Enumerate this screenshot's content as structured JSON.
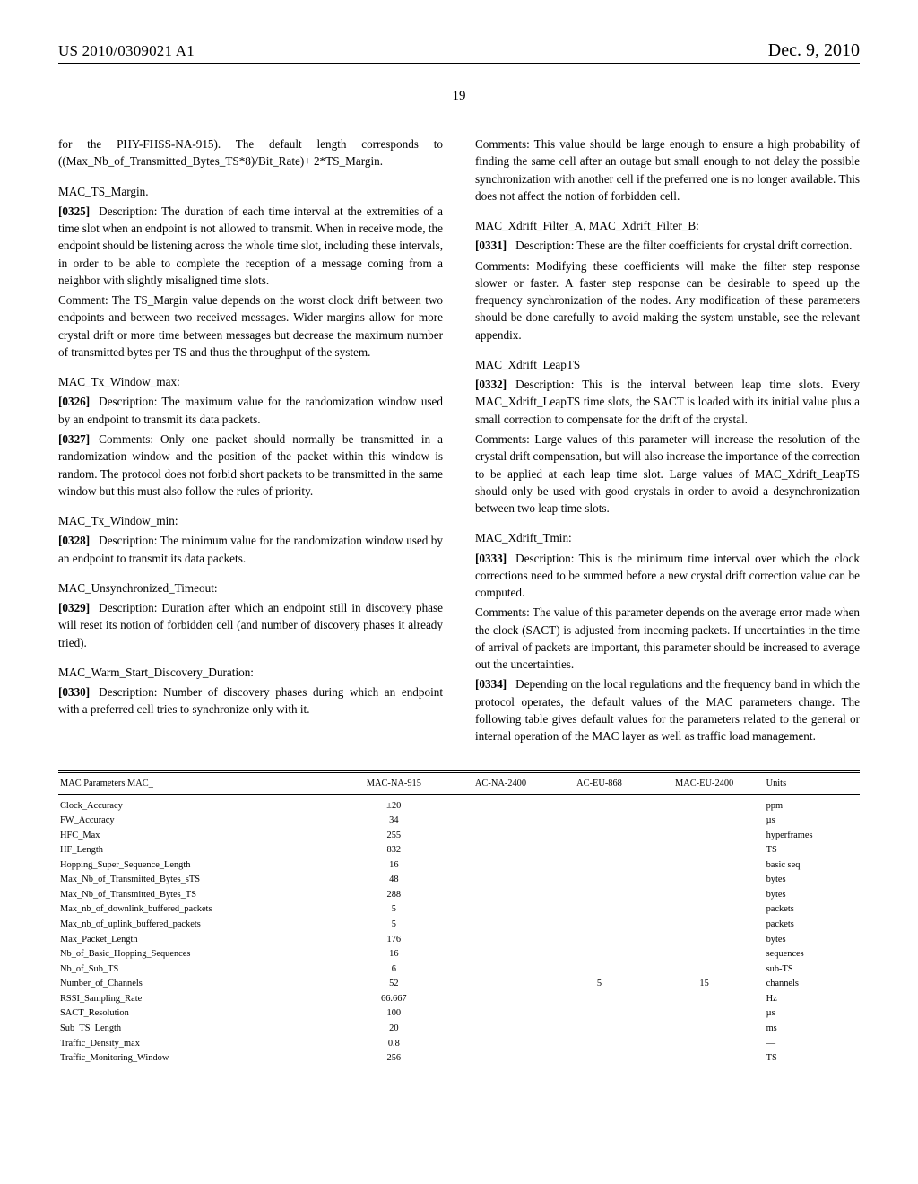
{
  "header": {
    "publication_id": "US 2010/0309021 A1",
    "date": "Dec. 9, 2010"
  },
  "page_number": "19",
  "left_column": {
    "intro_continued": "for the PHY-FHSS-NA-915). The default length corresponds to ((Max_Nb_of_Transmitted_Bytes_TS*8)/Bit_Rate)+ 2*TS_Margin.",
    "sections": [
      {
        "title": "MAC_TS_Margin.",
        "paras": [
          {
            "num": "[0325]",
            "text": "Description: The duration of each time interval at the extremities of a time slot when an endpoint is not allowed to transmit. When in receive mode, the endpoint should be listening across the whole time slot, including these intervals, in order to be able to complete the reception of a message coming from a neighbor with slightly misaligned time slots."
          },
          {
            "num": null,
            "text": "Comment: The TS_Margin value depends on the worst clock drift between two endpoints and between two received messages. Wider margins allow for more crystal drift or more time between messages but decrease the maximum number of transmitted bytes per TS and thus the throughput of the system."
          }
        ]
      },
      {
        "title": "MAC_Tx_Window_max:",
        "paras": [
          {
            "num": "[0326]",
            "text": "Description: The maximum value for the randomization window used by an endpoint to transmit its data packets."
          },
          {
            "num": "[0327]",
            "text": "Comments: Only one packet should normally be transmitted in a randomization window and the position of the packet within this window is random. The protocol does not forbid short packets to be transmitted in the same window but this must also follow the rules of priority."
          }
        ]
      },
      {
        "title": "MAC_Tx_Window_min:",
        "paras": [
          {
            "num": "[0328]",
            "text": "Description: The minimum value for the randomization window used by an endpoint to transmit its data packets."
          }
        ]
      },
      {
        "title": "MAC_Unsynchronized_Timeout:",
        "paras": [
          {
            "num": "[0329]",
            "text": "Description: Duration after which an endpoint still in discovery phase will reset its notion of forbidden cell (and number of discovery phases it already tried)."
          }
        ]
      },
      {
        "title": "MAC_Warm_Start_Discovery_Duration:",
        "paras": [
          {
            "num": "[0330]",
            "text": "Description: Number of discovery phases during which an endpoint with a preferred cell tries to synchronize only with it."
          }
        ]
      }
    ]
  },
  "right_column": {
    "intro_continued": "Comments: This value should be large enough to ensure a high probability of finding the same cell after an outage but small enough to not delay the possible synchronization with another cell if the preferred one is no longer available. This does not affect the notion of forbidden cell.",
    "sections": [
      {
        "title": "MAC_Xdrift_Filter_A, MAC_Xdrift_Filter_B:",
        "paras": [
          {
            "num": "[0331]",
            "text": "Description: These are the filter coefficients for crystal drift correction."
          },
          {
            "num": null,
            "text": "Comments: Modifying these coefficients will make the filter step response slower or faster. A faster step response can be desirable to speed up the frequency synchronization of the nodes. Any modification of these parameters should be done carefully to avoid making the system unstable, see the relevant appendix."
          }
        ]
      },
      {
        "title": "MAC_Xdrift_LeapTS",
        "paras": [
          {
            "num": "[0332]",
            "text": "Description: This is the interval between leap time slots. Every MAC_Xdrift_LeapTS time slots, the SACT is loaded with its initial value plus a small correction to compensate for the drift of the crystal."
          },
          {
            "num": null,
            "text": "Comments: Large values of this parameter will increase the resolution of the crystal drift compensation, but will also increase the importance of the correction to be applied at each leap time slot. Large values of MAC_Xdrift_LeapTS should only be used with good crystals in order to avoid a desynchronization between two leap time slots."
          }
        ]
      },
      {
        "title": "MAC_Xdrift_Tmin:",
        "paras": [
          {
            "num": "[0333]",
            "text": "Description: This is the minimum time interval over which the clock corrections need to be summed before a new crystal drift correction value can be computed."
          },
          {
            "num": null,
            "text": "Comments: The value of this parameter depends on the average error made when the clock (SACT) is adjusted from incoming packets. If uncertainties in the time of arrival of packets are important, this parameter should be increased to average out the uncertainties."
          },
          {
            "num": "[0334]",
            "text": "Depending on the local regulations and the frequency band in which the protocol operates, the default values of the MAC parameters change. The following table gives default values for the parameters related to the general or internal operation of the MAC layer as well as traffic load management."
          }
        ]
      }
    ]
  },
  "table": {
    "columns": [
      "MAC Parameters MAC_",
      "MAC-NA-915",
      "AC-NA-2400",
      "AC-EU-868",
      "MAC-EU-2400",
      "Units"
    ],
    "rows": [
      [
        "Clock_Accuracy",
        "±20",
        "",
        "",
        "",
        "ppm"
      ],
      [
        "FW_Accuracy",
        "34",
        "",
        "",
        "",
        "µs"
      ],
      [
        "HFC_Max",
        "255",
        "",
        "",
        "",
        "hyperframes"
      ],
      [
        "HF_Length",
        "832",
        "",
        "",
        "",
        "TS"
      ],
      [
        "Hopping_Super_Sequence_Length",
        "16",
        "",
        "",
        "",
        "basic seq"
      ],
      [
        "Max_Nb_of_Transmitted_Bytes_sTS",
        "48",
        "",
        "",
        "",
        "bytes"
      ],
      [
        "Max_Nb_of_Transmitted_Bytes_TS",
        "288",
        "",
        "",
        "",
        "bytes"
      ],
      [
        "Max_nb_of_downlink_buffered_packets",
        "5",
        "",
        "",
        "",
        "packets"
      ],
      [
        "Max_nb_of_uplink_buffered_packets",
        "5",
        "",
        "",
        "",
        "packets"
      ],
      [
        "Max_Packet_Length",
        "176",
        "",
        "",
        "",
        "bytes"
      ],
      [
        "Nb_of_Basic_Hopping_Sequences",
        "16",
        "",
        "",
        "",
        "sequences"
      ],
      [
        "Nb_of_Sub_TS",
        "6",
        "",
        "",
        "",
        "sub-TS"
      ],
      [
        "Number_of_Channels",
        "52",
        "",
        "5",
        "15",
        "channels"
      ],
      [
        "RSSI_Sampling_Rate",
        "66.667",
        "",
        "",
        "",
        "Hz"
      ],
      [
        "SACT_Resolution",
        "100",
        "",
        "",
        "",
        "µs"
      ],
      [
        "Sub_TS_Length",
        "20",
        "",
        "",
        "",
        "ms"
      ],
      [
        "Traffic_Density_max",
        "0.8",
        "",
        "",
        "",
        "—"
      ],
      [
        "Traffic_Monitoring_Window",
        "256",
        "",
        "",
        "",
        "TS"
      ]
    ]
  }
}
